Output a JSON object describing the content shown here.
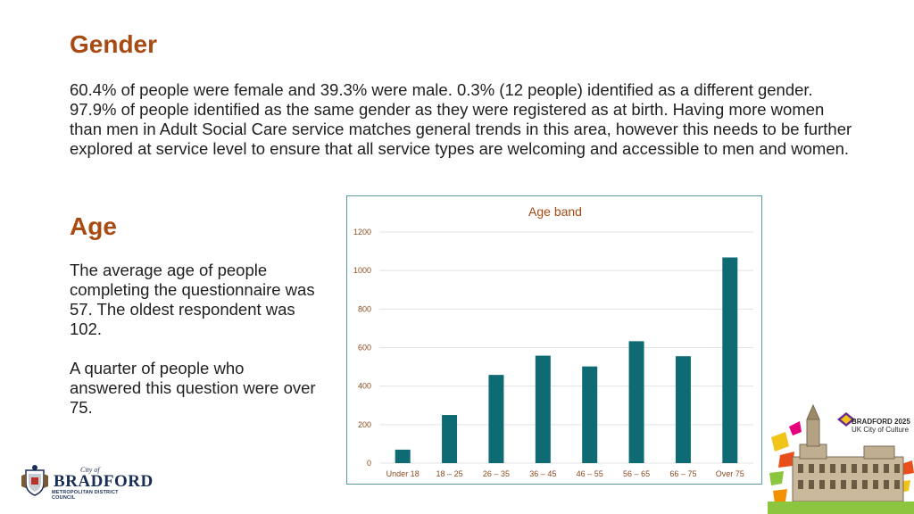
{
  "gender": {
    "heading": "Gender",
    "text": "60.4% of people were female and 39.3% were male. 0.3% (12 people) identified as a different gender. 97.9% of people identified as the same gender as they were registered as at birth. Having more women than men in Adult Social Care service matches general trends in this area, however this needs to be further explored at service level to ensure that all service types are welcoming and accessible to men and women."
  },
  "age": {
    "heading": "Age",
    "text1": "The average age of people completing the questionnaire was 57. The oldest respondent was 102.",
    "text2": "A quarter of people who answered this question were over 75."
  },
  "chart_data": {
    "type": "bar",
    "title": "Age band",
    "categories": [
      "Under 18",
      "18 – 25",
      "26 – 35",
      "36 – 45",
      "46 – 55",
      "56 – 65",
      "66 – 75",
      "Over 75"
    ],
    "values": [
      70,
      250,
      458,
      558,
      502,
      633,
      555,
      1068
    ],
    "ylim": [
      0,
      1200
    ],
    "yticks": [
      0,
      200,
      400,
      600,
      800,
      1000,
      1200
    ],
    "grid": true,
    "bar_color": "#0e6b74",
    "title_color": "#a84a12"
  },
  "logo": {
    "city_of": "City of",
    "name": "BRADFORD",
    "council": "METROPOLITAN DISTRICT COUNCIL"
  },
  "culture_badge": {
    "line1": "BRADFORD 2025",
    "line2": "UK City of Culture"
  },
  "colors": {
    "heading": "#a84a12",
    "bar": "#0e6b74",
    "chart_border": "#5a9aa6"
  }
}
